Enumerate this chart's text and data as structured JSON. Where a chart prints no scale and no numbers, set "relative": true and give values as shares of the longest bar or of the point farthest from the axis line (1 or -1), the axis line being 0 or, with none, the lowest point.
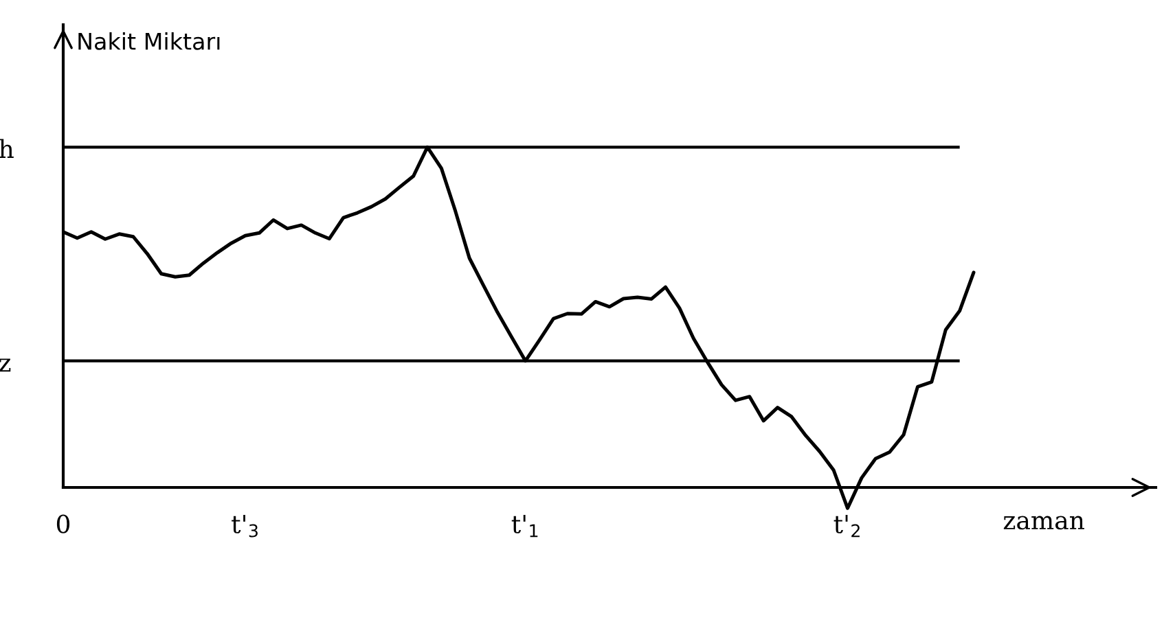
{
  "chart_data": {
    "type": "line",
    "relative": true,
    "ylabel": "Nakit Miktarı",
    "xlabel": "zaman",
    "categories": [
      "0",
      null,
      null,
      null,
      null,
      null,
      null,
      null,
      null,
      null,
      null,
      null,
      null,
      "t'$_{3}$",
      null,
      null,
      null,
      null,
      null,
      null,
      null,
      null,
      null,
      null,
      null,
      null,
      null,
      null,
      null,
      null,
      null,
      null,
      null,
      "t'$_{1}$",
      null,
      null,
      null,
      null,
      null,
      null,
      null,
      null,
      null,
      null,
      null,
      null,
      null,
      null,
      null,
      null,
      null,
      null,
      null,
      null,
      null,
      null,
      "t'$_{2}$",
      null,
      null,
      null,
      null,
      null,
      null,
      null,
      null,
      null
    ],
    "ref_lines": [
      {
        "axis": "y",
        "value": 1.0,
        "label": "h",
        "color": "#000000"
      },
      {
        "axis": "y",
        "value": 0.372,
        "label": "z",
        "color": "#000000"
      }
    ],
    "legend": false,
    "marker": "none",
    "line_style": "solid",
    "series": [
      {
        "color": "#000000",
        "values": [
          0.751,
          0.733,
          0.751,
          0.73,
          0.745,
          0.737,
          0.687,
          0.628,
          0.619,
          0.624,
          0.659,
          0.69,
          0.718,
          0.74,
          0.748,
          0.786,
          0.761,
          0.771,
          0.748,
          0.731,
          0.793,
          0.807,
          0.825,
          0.848,
          0.882,
          0.915,
          1.0,
          0.938,
          0.812,
          0.674,
          0.594,
          0.515,
          0.443,
          0.372,
          0.433,
          0.496,
          0.511,
          0.51,
          0.546,
          0.531,
          0.555,
          0.559,
          0.554,
          0.589,
          0.527,
          0.438,
          0.368,
          0.302,
          0.256,
          0.267,
          0.196,
          0.235,
          0.208,
          0.153,
          0.106,
          0.051,
          -0.061,
          0.028,
          0.085,
          0.104,
          0.155,
          0.296,
          0.31,
          0.463,
          0.519,
          0.632
        ]
      }
    ]
  }
}
